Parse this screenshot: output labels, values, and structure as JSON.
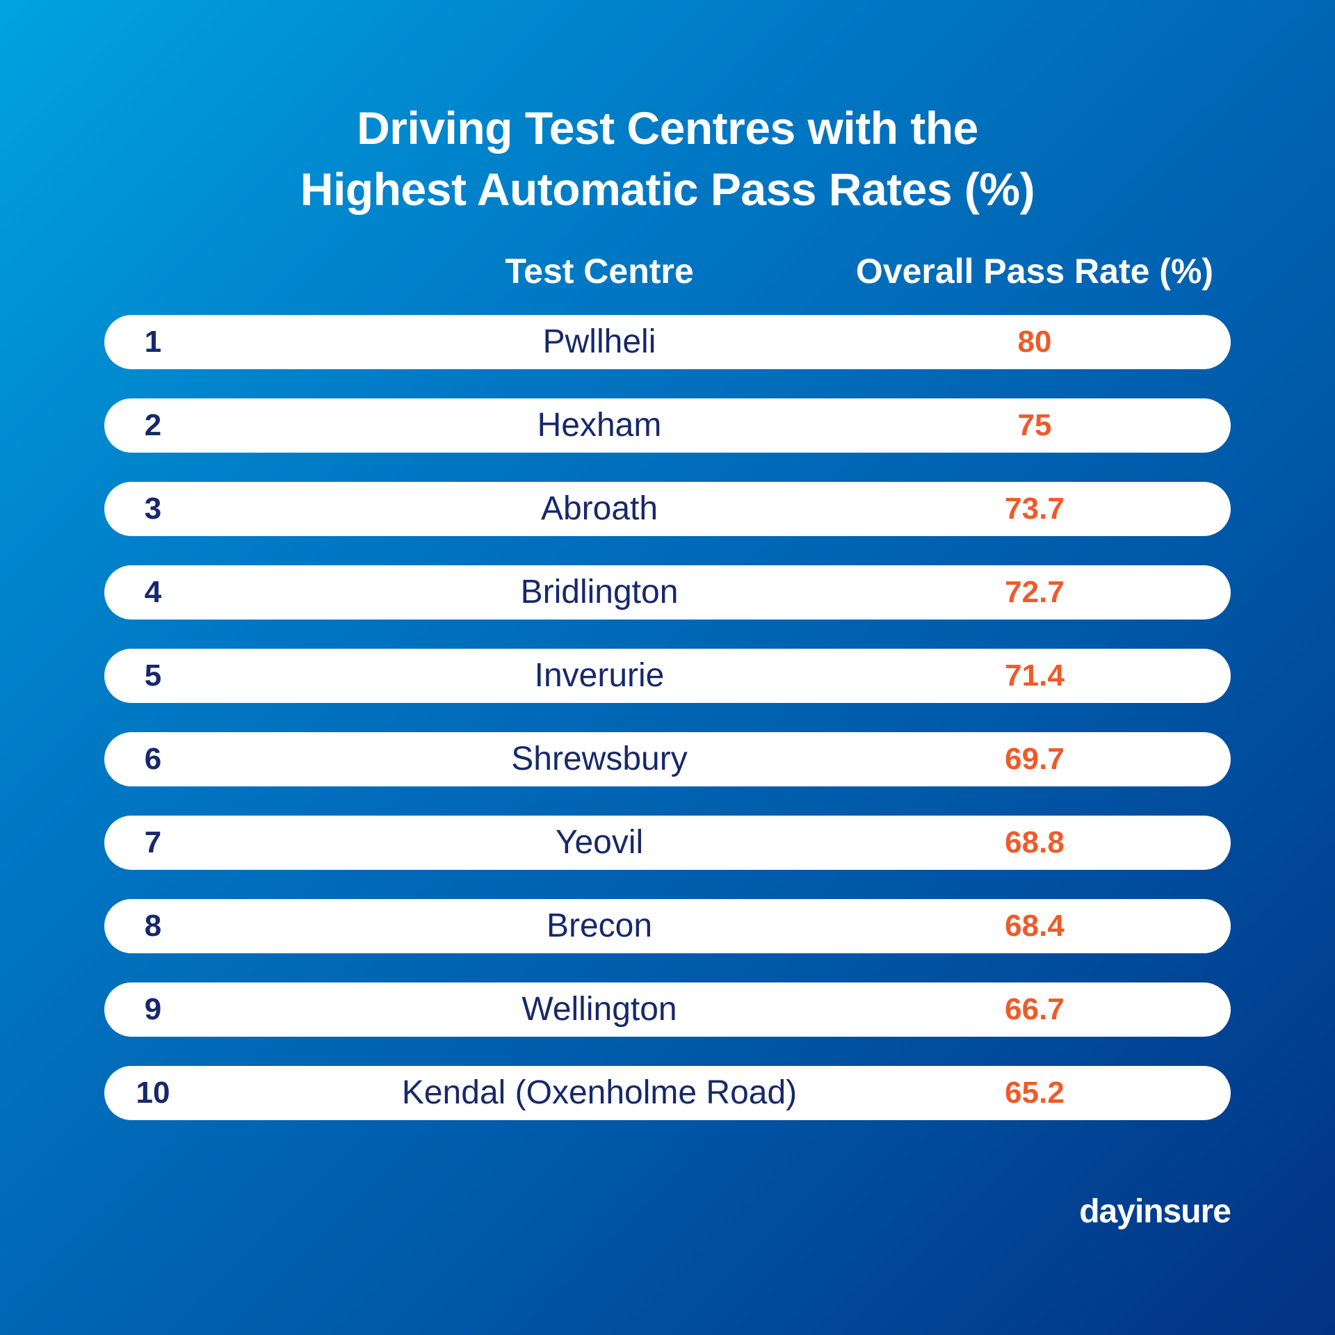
{
  "colors": {
    "background_top_left": "#00a3e0",
    "background_bottom_right": "#023283",
    "row_background": "#ffffff",
    "rank_and_centre_text": "#17286b",
    "rate_text": "#f05a28",
    "header_text": "#ffffff"
  },
  "title_lines": [
    "Driving Test Centres with the",
    "Highest Automatic Pass Rates (%)"
  ],
  "headers": {
    "centre": "Test Centre",
    "rate": "Overall Pass Rate (%)"
  },
  "logo": "dayinsure",
  "chart_data": {
    "type": "table",
    "title": "Driving Test Centres with the Highest Automatic Pass Rates (%)",
    "columns": [
      "",
      "Test Centre",
      "Overall Pass Rate (%)"
    ],
    "rows": [
      {
        "rank": "1",
        "centre": "Pwllheli",
        "rate": "80"
      },
      {
        "rank": "2",
        "centre": "Hexham",
        "rate": "75"
      },
      {
        "rank": "3",
        "centre": "Abroath",
        "rate": "73.7"
      },
      {
        "rank": "4",
        "centre": "Bridlington",
        "rate": "72.7"
      },
      {
        "rank": "5",
        "centre": "Inverurie",
        "rate": "71.4"
      },
      {
        "rank": "6",
        "centre": "Shrewsbury",
        "rate": "69.7"
      },
      {
        "rank": "7",
        "centre": "Yeovil",
        "rate": "68.8"
      },
      {
        "rank": "8",
        "centre": "Brecon",
        "rate": "68.4"
      },
      {
        "rank": "9",
        "centre": "Wellington",
        "rate": "66.7"
      },
      {
        "rank": "10",
        "centre": "Kendal (Oxenholme Road)",
        "rate": "65.2"
      }
    ]
  }
}
